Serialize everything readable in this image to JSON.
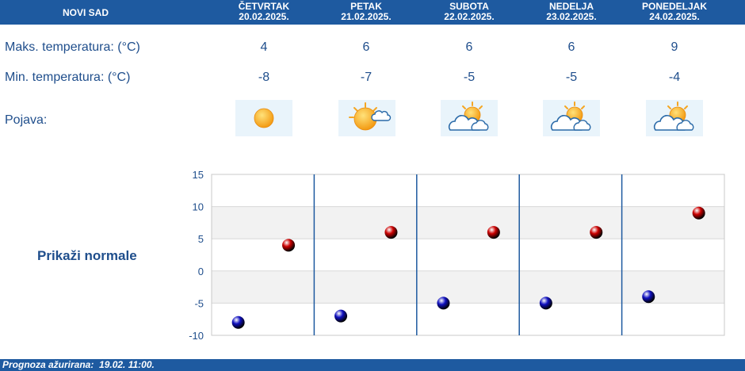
{
  "header": {
    "city": "NOVI SAD",
    "days": [
      {
        "name": "ČETVRTAK",
        "date": "20.02.2025."
      },
      {
        "name": "PETAK",
        "date": "21.02.2025."
      },
      {
        "name": "SUBOTA",
        "date": "22.02.2025."
      },
      {
        "name": "NEDELJA",
        "date": "23.02.2025."
      },
      {
        "name": "PONEDELJAK",
        "date": "24.02.2025."
      }
    ]
  },
  "rows": {
    "max_label": "Maks. temperatura: (°C)",
    "min_label": "Min. temperatura: (°C)",
    "weather_label": "Pojava:",
    "max_values": [
      "4",
      "6",
      "6",
      "6",
      "9"
    ],
    "min_values": [
      "-8",
      "-7",
      "-5",
      "-5",
      "-4"
    ],
    "weather_icons": [
      "sun-icon",
      "sun-cloud-icon",
      "partly-cloudy-icon",
      "partly-cloudy-icon",
      "partly-cloudy-icon"
    ]
  },
  "normals_link": "Prikaži normale",
  "chart_data": {
    "type": "scatter",
    "categories": [
      "20.02.2025.",
      "21.02.2025.",
      "22.02.2025.",
      "23.02.2025.",
      "24.02.2025."
    ],
    "series": [
      {
        "color": "#cc0000",
        "values": [
          4,
          6,
          6,
          6,
          9
        ]
      },
      {
        "color": "#1010c0",
        "values": [
          -8,
          -7,
          -5,
          -5,
          -4
        ]
      }
    ],
    "y_ticks": [
      "15",
      "10",
      "5",
      "0",
      "-5",
      "-10"
    ],
    "ylim": [
      -10,
      15
    ],
    "grid": true,
    "banded": true
  },
  "footer": {
    "text": "Prognoza ažurirana:  19.02. 11:00."
  },
  "colors": {
    "header_bg": "#1e5aa0",
    "text": "#1f4e8c",
    "max_point": "#cc0000",
    "min_point": "#1010c0"
  }
}
